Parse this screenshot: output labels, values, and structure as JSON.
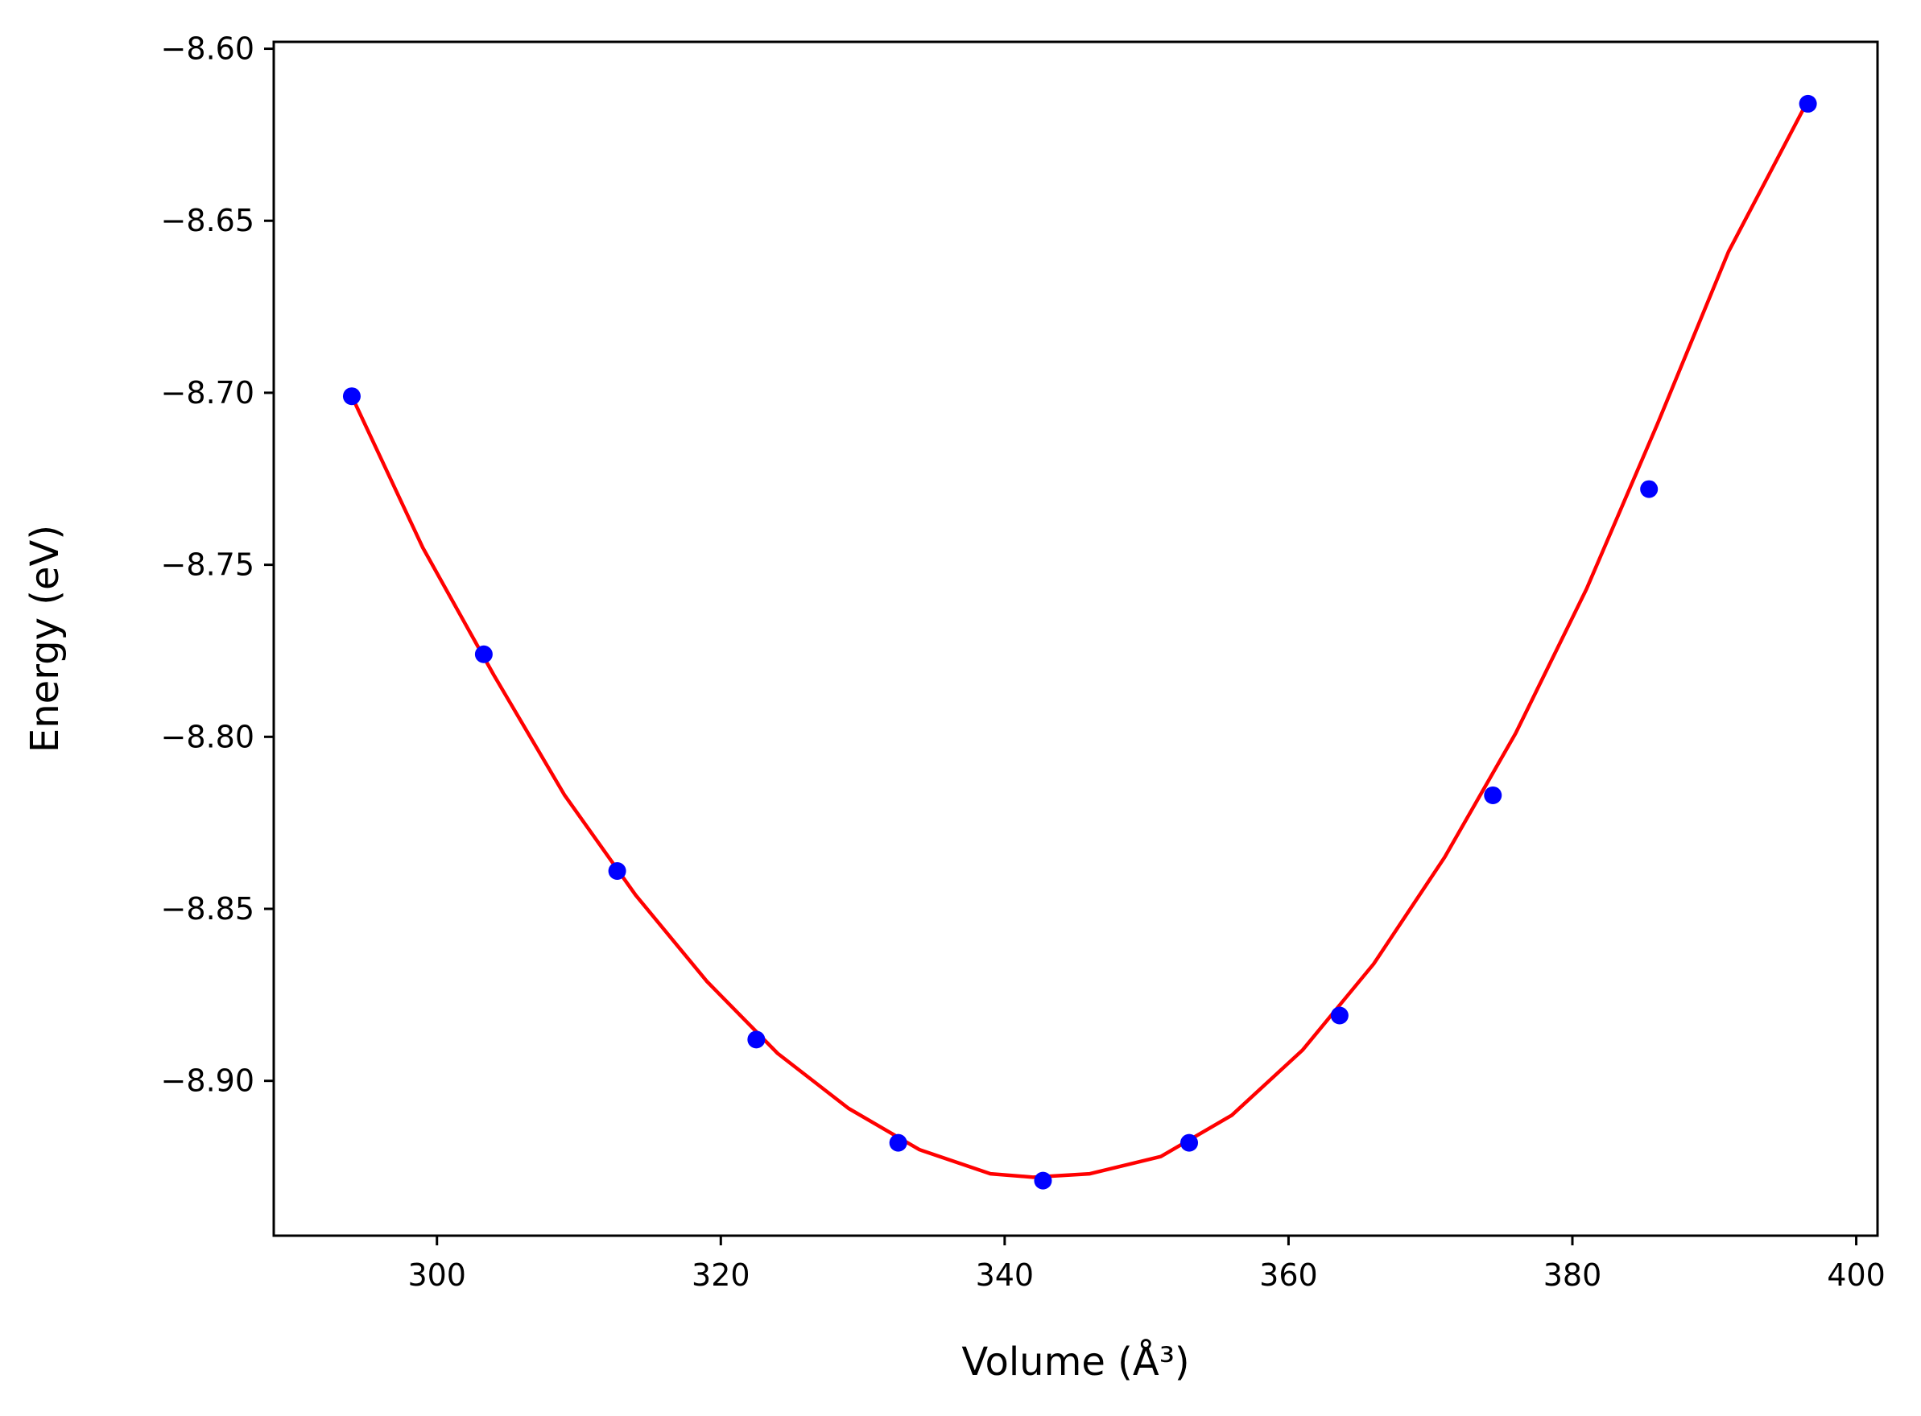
{
  "chart_data": {
    "type": "scatter",
    "title": "",
    "xlabel": "Volume (Å³)",
    "ylabel": "Energy (eV)",
    "xlim": [
      288.5,
      401.5
    ],
    "ylim": [
      -8.945,
      -8.598
    ],
    "xticks": [
      300,
      320,
      340,
      360,
      380,
      400
    ],
    "xtick_labels": [
      "300",
      "320",
      "340",
      "360",
      "380",
      "400"
    ],
    "yticks": [
      -8.6,
      -8.65,
      -8.7,
      -8.75,
      -8.8,
      -8.85,
      -8.9
    ],
    "ytick_labels": [
      "−8.60",
      "−8.65",
      "−8.70",
      "−8.75",
      "−8.80",
      "−8.85",
      "−8.90"
    ],
    "grid": false,
    "colors": {
      "points": "#0000ff",
      "fit_line": "#ff0000",
      "axes": "#000000"
    },
    "series": [
      {
        "type": "scatter",
        "x": [
          294.0,
          303.3,
          312.7,
          322.5,
          332.5,
          342.7,
          353.0,
          363.6,
          374.4,
          385.4,
          396.6
        ],
        "y": [
          -8.701,
          -8.776,
          -8.839,
          -8.888,
          -8.918,
          -8.929,
          -8.918,
          -8.881,
          -8.817,
          -8.728,
          -8.616
        ]
      },
      {
        "type": "line",
        "x": [
          294.0,
          299.0,
          304.0,
          309.0,
          314.0,
          319.0,
          324.0,
          329.0,
          334.0,
          339.0,
          342.0,
          346.0,
          351.0,
          356.0,
          361.0,
          366.0,
          371.0,
          376.0,
          381.0,
          386.0,
          391.0,
          396.6
        ],
        "y": [
          -8.701,
          -8.745,
          -8.782,
          -8.817,
          -8.846,
          -8.871,
          -8.892,
          -8.908,
          -8.92,
          -8.927,
          -8.928,
          -8.927,
          -8.922,
          -8.91,
          -8.891,
          -8.866,
          -8.835,
          -8.799,
          -8.757,
          -8.709,
          -8.659,
          -8.615
        ]
      }
    ]
  }
}
